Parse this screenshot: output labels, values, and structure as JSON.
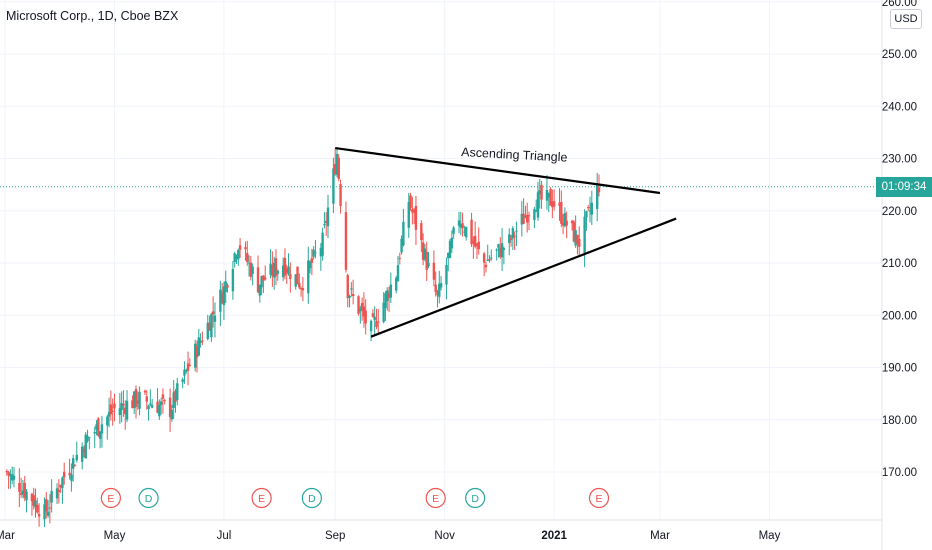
{
  "header": {
    "title": "Microsoft Corp., 1D, Cboe BZX"
  },
  "scale": {
    "currency": "USD",
    "countdown": "01:09:34"
  },
  "colors": {
    "up": "#26a69a",
    "down": "#ef5350",
    "earnings": "#ef5350",
    "dividend": "#26a69a",
    "grid": "#f0f3fa",
    "line": "#000000"
  },
  "chart_data": {
    "type": "candlestick",
    "title": "Microsoft Corp., 1D, Cboe BZX",
    "x_axis": {
      "tick_labels": [
        "Mar",
        "May",
        "Jul",
        "Sep",
        "Nov",
        "2021",
        "Mar",
        "May"
      ],
      "range": [
        "2020-03",
        "2021-05"
      ]
    },
    "y_axis": {
      "tick_labels": [
        "170.00",
        "180.00",
        "190.00",
        "200.00",
        "210.00",
        "220.00",
        "230.00",
        "240.00",
        "250.00",
        "260.00"
      ],
      "range": [
        160.6,
        262
      ],
      "position": "right"
    },
    "grid": true,
    "last_price": 224.6,
    "annotation": {
      "text": "Ascending Triangle"
    },
    "trendlines": [
      {
        "name": "upper",
        "from": [
          "2020-09-01",
          232.0
        ],
        "to": [
          "2021-03-01",
          223.4
        ]
      },
      {
        "name": "lower",
        "from": [
          "2020-09-21",
          195.9
        ],
        "to": [
          "2021-03-10",
          218.5
        ]
      }
    ],
    "events": [
      {
        "type": "E",
        "date": "2020-04-29"
      },
      {
        "type": "D",
        "date": "2020-05-20"
      },
      {
        "type": "E",
        "date": "2020-07-22"
      },
      {
        "type": "D",
        "date": "2020-08-19"
      },
      {
        "type": "E",
        "date": "2020-10-27"
      },
      {
        "type": "D",
        "date": "2020-11-18"
      },
      {
        "type": "E",
        "date": "2021-01-26"
      }
    ],
    "anchors": [
      [
        "2020-03-02",
        170
      ],
      [
        "2020-03-16",
        165
      ],
      [
        "2020-03-23",
        162
      ],
      [
        "2020-04-01",
        168
      ],
      [
        "2020-04-15",
        176
      ],
      [
        "2020-05-01",
        182
      ],
      [
        "2020-05-15",
        184
      ],
      [
        "2020-06-01",
        182
      ],
      [
        "2020-06-15",
        193
      ],
      [
        "2020-07-01",
        205
      ],
      [
        "2020-07-09",
        214
      ],
      [
        "2020-07-20",
        206
      ],
      [
        "2020-08-03",
        210
      ],
      [
        "2020-08-13",
        206
      ],
      [
        "2020-08-25",
        214
      ],
      [
        "2020-09-02",
        231
      ],
      [
        "2020-09-08",
        205
      ],
      [
        "2020-09-21",
        197
      ],
      [
        "2020-10-05",
        208
      ],
      [
        "2020-10-12",
        222
      ],
      [
        "2020-10-28",
        203
      ],
      [
        "2020-11-09",
        219
      ],
      [
        "2020-11-23",
        210
      ],
      [
        "2020-12-07",
        214
      ],
      [
        "2020-12-21",
        222
      ],
      [
        "2020-12-31",
        222
      ],
      [
        "2021-01-07",
        218
      ],
      [
        "2021-01-15",
        214
      ],
      [
        "2021-01-22",
        221
      ],
      [
        "2021-01-26",
        225
      ]
    ]
  }
}
